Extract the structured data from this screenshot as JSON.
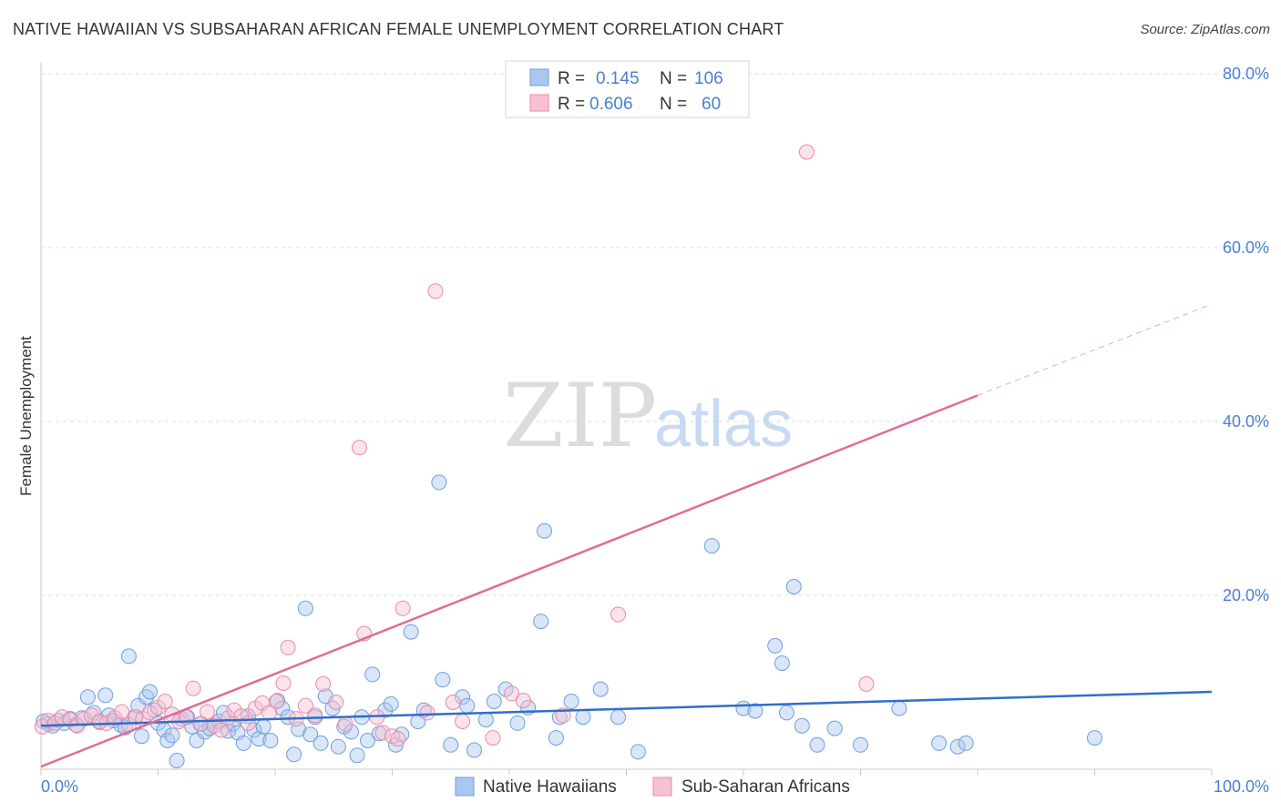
{
  "header": {
    "title": "NATIVE HAWAIIAN VS SUBSAHARAN AFRICAN FEMALE UNEMPLOYMENT CORRELATION CHART",
    "source": "Source: ZipAtlas.com"
  },
  "watermark": {
    "part1": "ZIP",
    "part2": "atlas"
  },
  "stats_legend": [
    {
      "r_label": "R =",
      "r_value": "0.145",
      "n_label": "N =",
      "n_value": "106",
      "color": "#a9c8f0",
      "stroke": "#6f9edc"
    },
    {
      "r_label": "R =",
      "r_value": "0.606",
      "n_label": "N =",
      "n_value": "60",
      "color": "#f6c2d2",
      "stroke": "#e88aa8"
    }
  ],
  "colors": {
    "blue": "#4a7fd0",
    "blue_line": "#2f6fc8",
    "pink_line": "#e06b97",
    "grid": "#d8dde6"
  },
  "chart_data": {
    "type": "scatter",
    "title": "NATIVE HAWAIIAN VS SUBSAHARAN AFRICAN FEMALE UNEMPLOYMENT CORRELATION CHART",
    "xlabel": "",
    "ylabel": "Female Unemployment",
    "xlim": [
      0,
      100
    ],
    "ylim": [
      0,
      80
    ],
    "x_tick_labels": [
      "0.0%",
      "100.0%"
    ],
    "y_ticks": [
      20,
      40,
      60,
      80
    ],
    "y_tick_labels": [
      "20.0%",
      "40.0%",
      "60.0%",
      "80.0%"
    ],
    "grid": true,
    "legend": [
      "Native Hawaiians",
      "Sub-Saharan Africans"
    ],
    "series": [
      {
        "name": "Native Hawaiians",
        "trend": {
          "x": [
            0,
            100
          ],
          "y": [
            5.0,
            8.9
          ],
          "dashed_from": null
        },
        "points": [
          [
            0.2,
            5.5
          ],
          [
            0.6,
            5.2
          ],
          [
            1.0,
            5.0
          ],
          [
            1.5,
            5.6
          ],
          [
            2.0,
            5.3
          ],
          [
            2.5,
            5.8
          ],
          [
            3.0,
            5.1
          ],
          [
            3.5,
            5.9
          ],
          [
            4.0,
            8.3
          ],
          [
            4.5,
            6.5
          ],
          [
            5.0,
            5.4
          ],
          [
            5.5,
            8.5
          ],
          [
            5.8,
            6.2
          ],
          [
            6.2,
            5.6
          ],
          [
            6.8,
            5.1
          ],
          [
            7.2,
            4.8
          ],
          [
            7.5,
            13.0
          ],
          [
            8.0,
            6.0
          ],
          [
            8.3,
            7.3
          ],
          [
            8.6,
            3.8
          ],
          [
            9.0,
            8.3
          ],
          [
            9.3,
            8.9
          ],
          [
            9.7,
            6.8
          ],
          [
            10.0,
            5.3
          ],
          [
            10.5,
            4.5
          ],
          [
            10.8,
            3.3
          ],
          [
            11.2,
            3.9
          ],
          [
            11.6,
            1.0
          ],
          [
            12.0,
            5.8
          ],
          [
            12.5,
            6.0
          ],
          [
            12.9,
            4.9
          ],
          [
            13.3,
            3.3
          ],
          [
            13.7,
            5.2
          ],
          [
            14.0,
            4.3
          ],
          [
            14.4,
            4.7
          ],
          [
            14.8,
            5.0
          ],
          [
            15.2,
            5.5
          ],
          [
            15.6,
            6.5
          ],
          [
            16.0,
            4.4
          ],
          [
            16.4,
            5.2
          ],
          [
            16.8,
            4.2
          ],
          [
            17.3,
            3.0
          ],
          [
            17.7,
            6.1
          ],
          [
            18.2,
            4.5
          ],
          [
            18.6,
            3.5
          ],
          [
            19.0,
            4.9
          ],
          [
            19.6,
            3.3
          ],
          [
            20.2,
            7.9
          ],
          [
            20.6,
            7.0
          ],
          [
            21.1,
            6.0
          ],
          [
            21.6,
            1.7
          ],
          [
            22.0,
            4.6
          ],
          [
            22.6,
            18.5
          ],
          [
            23.0,
            4.0
          ],
          [
            23.4,
            6.0
          ],
          [
            23.9,
            3.0
          ],
          [
            24.3,
            8.4
          ],
          [
            24.9,
            7.0
          ],
          [
            25.4,
            2.6
          ],
          [
            25.9,
            4.9
          ],
          [
            26.5,
            4.3
          ],
          [
            27.0,
            1.6
          ],
          [
            27.4,
            6.0
          ],
          [
            27.9,
            3.3
          ],
          [
            28.3,
            10.9
          ],
          [
            28.9,
            4.1
          ],
          [
            29.4,
            6.8
          ],
          [
            29.9,
            7.5
          ],
          [
            30.3,
            2.8
          ],
          [
            30.8,
            4.0
          ],
          [
            31.6,
            15.8
          ],
          [
            32.2,
            5.5
          ],
          [
            32.7,
            6.8
          ],
          [
            34.0,
            33.0
          ],
          [
            34.3,
            10.3
          ],
          [
            35.0,
            2.8
          ],
          [
            36.0,
            8.3
          ],
          [
            36.4,
            7.3
          ],
          [
            37.0,
            2.2
          ],
          [
            38.0,
            5.7
          ],
          [
            38.7,
            7.8
          ],
          [
            39.7,
            9.2
          ],
          [
            40.7,
            5.3
          ],
          [
            41.6,
            7.1
          ],
          [
            42.7,
            17.0
          ],
          [
            43.0,
            27.4
          ],
          [
            44.0,
            3.6
          ],
          [
            44.3,
            6.0
          ],
          [
            45.3,
            7.8
          ],
          [
            46.3,
            6.0
          ],
          [
            47.8,
            9.2
          ],
          [
            49.3,
            6.0
          ],
          [
            51.0,
            2.0
          ],
          [
            57.3,
            25.7
          ],
          [
            60.0,
            7.0
          ],
          [
            61.0,
            6.7
          ],
          [
            62.7,
            14.2
          ],
          [
            63.3,
            12.2
          ],
          [
            63.7,
            6.5
          ],
          [
            64.3,
            21.0
          ],
          [
            65.0,
            5.0
          ],
          [
            66.3,
            2.8
          ],
          [
            67.8,
            4.7
          ],
          [
            70.0,
            2.8
          ],
          [
            73.3,
            7.0
          ],
          [
            76.7,
            3.0
          ],
          [
            78.3,
            2.6
          ],
          [
            79.0,
            3.0
          ],
          [
            90.0,
            3.6
          ]
        ]
      },
      {
        "name": "Sub-Saharan Africans",
        "trend": {
          "x": [
            0,
            80,
            100
          ],
          "y": [
            0.3,
            43.0,
            53.5
          ],
          "dashed_from": 80
        },
        "points": [
          [
            0.1,
            4.9
          ],
          [
            0.6,
            5.6
          ],
          [
            1.2,
            5.3
          ],
          [
            1.8,
            6.0
          ],
          [
            2.5,
            5.7
          ],
          [
            3.1,
            5.0
          ],
          [
            3.7,
            5.8
          ],
          [
            4.3,
            6.2
          ],
          [
            5.0,
            5.5
          ],
          [
            5.6,
            5.3
          ],
          [
            6.3,
            5.9
          ],
          [
            6.9,
            6.6
          ],
          [
            7.5,
            5.1
          ],
          [
            8.1,
            6.0
          ],
          [
            8.7,
            5.8
          ],
          [
            9.3,
            6.5
          ],
          [
            10.0,
            7.1
          ],
          [
            10.6,
            7.8
          ],
          [
            11.2,
            6.3
          ],
          [
            11.8,
            5.5
          ],
          [
            12.4,
            6.0
          ],
          [
            13.0,
            9.3
          ],
          [
            13.6,
            5.2
          ],
          [
            14.2,
            6.6
          ],
          [
            14.8,
            5.0
          ],
          [
            15.4,
            4.5
          ],
          [
            16.0,
            5.9
          ],
          [
            16.5,
            6.8
          ],
          [
            17.1,
            6.1
          ],
          [
            17.7,
            5.3
          ],
          [
            18.3,
            7.0
          ],
          [
            18.9,
            7.6
          ],
          [
            19.5,
            6.5
          ],
          [
            20.1,
            7.8
          ],
          [
            20.7,
            9.9
          ],
          [
            21.1,
            14.0
          ],
          [
            21.8,
            5.8
          ],
          [
            22.6,
            7.3
          ],
          [
            23.4,
            6.2
          ],
          [
            24.1,
            9.8
          ],
          [
            25.2,
            7.7
          ],
          [
            26.0,
            5.2
          ],
          [
            27.2,
            37.0
          ],
          [
            27.6,
            15.6
          ],
          [
            28.7,
            6.0
          ],
          [
            29.2,
            4.2
          ],
          [
            30.0,
            3.8
          ],
          [
            30.5,
            3.5
          ],
          [
            30.9,
            18.5
          ],
          [
            33.0,
            6.5
          ],
          [
            33.7,
            55.0
          ],
          [
            35.2,
            7.7
          ],
          [
            36.0,
            5.5
          ],
          [
            38.6,
            3.6
          ],
          [
            40.2,
            8.7
          ],
          [
            41.2,
            7.9
          ],
          [
            44.6,
            6.2
          ],
          [
            49.3,
            17.8
          ],
          [
            65.4,
            71.0
          ],
          [
            70.5,
            9.8
          ]
        ]
      }
    ]
  }
}
